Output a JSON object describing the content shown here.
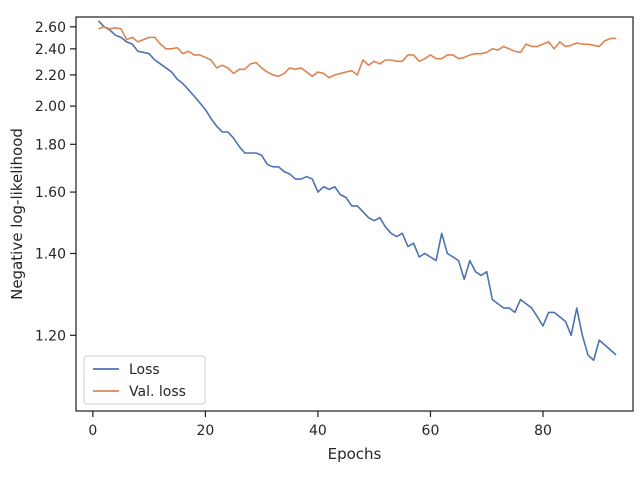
{
  "chart_data": {
    "type": "line",
    "title": "",
    "xlabel": "Epochs",
    "ylabel": "Negative log-likelihood",
    "xlim": [
      -3,
      96
    ],
    "ylim": [
      1.06,
      2.7
    ],
    "y_scale": "reciprocal (1/y)",
    "grid": false,
    "legend_position": "lower-left",
    "x_ticks": [
      0,
      20,
      40,
      60,
      80
    ],
    "x_tick_labels": [
      "0",
      "20",
      "40",
      "60",
      "80"
    ],
    "y_ticks": [
      1.2,
      1.4,
      1.6,
      1.8,
      2.0,
      2.2,
      2.4,
      2.6
    ],
    "y_tick_labels": [
      "1.20",
      "1.40",
      "1.60",
      "1.80",
      "2.00",
      "2.20",
      "2.40",
      "2.60"
    ],
    "series": [
      {
        "name": "Loss",
        "color": "#4c72b0",
        "x": [
          1,
          2,
          3,
          4,
          5,
          6,
          7,
          8,
          9,
          10,
          11,
          12,
          13,
          14,
          15,
          16,
          17,
          18,
          19,
          20,
          21,
          22,
          23,
          24,
          25,
          26,
          27,
          28,
          29,
          30,
          31,
          32,
          33,
          34,
          35,
          36,
          37,
          38,
          39,
          40,
          41,
          42,
          43,
          44,
          45,
          46,
          47,
          48,
          49,
          50,
          51,
          52,
          53,
          54,
          55,
          56,
          57,
          58,
          59,
          60,
          61,
          62,
          63,
          64,
          65,
          66,
          67,
          68,
          69,
          70,
          71,
          72,
          73,
          74,
          75,
          76,
          77,
          78,
          79,
          80,
          81,
          82,
          83,
          84,
          85,
          86,
          87,
          88,
          89,
          90,
          91,
          92,
          93
        ],
        "values": [
          2.66,
          2.6,
          2.57,
          2.52,
          2.5,
          2.46,
          2.44,
          2.38,
          2.37,
          2.36,
          2.31,
          2.28,
          2.25,
          2.22,
          2.17,
          2.14,
          2.1,
          2.06,
          2.02,
          1.98,
          1.93,
          1.89,
          1.86,
          1.86,
          1.83,
          1.79,
          1.76,
          1.76,
          1.76,
          1.75,
          1.71,
          1.7,
          1.7,
          1.68,
          1.67,
          1.65,
          1.65,
          1.66,
          1.65,
          1.6,
          1.62,
          1.61,
          1.62,
          1.59,
          1.58,
          1.55,
          1.55,
          1.53,
          1.51,
          1.5,
          1.51,
          1.48,
          1.46,
          1.45,
          1.46,
          1.42,
          1.43,
          1.39,
          1.4,
          1.39,
          1.38,
          1.46,
          1.4,
          1.39,
          1.38,
          1.33,
          1.38,
          1.35,
          1.34,
          1.35,
          1.28,
          1.27,
          1.26,
          1.26,
          1.25,
          1.28,
          1.27,
          1.26,
          1.24,
          1.22,
          1.25,
          1.25,
          1.24,
          1.23,
          1.2,
          1.26,
          1.2,
          1.16,
          1.15,
          1.19,
          1.18,
          1.17,
          1.16
        ]
      },
      {
        "name": "Val. loss",
        "color": "#dd8452",
        "x": [
          1,
          2,
          3,
          4,
          5,
          6,
          7,
          8,
          9,
          10,
          11,
          12,
          13,
          14,
          15,
          16,
          17,
          18,
          19,
          20,
          21,
          22,
          23,
          24,
          25,
          26,
          27,
          28,
          29,
          30,
          31,
          32,
          33,
          34,
          35,
          36,
          37,
          38,
          39,
          40,
          41,
          42,
          43,
          44,
          45,
          46,
          47,
          48,
          49,
          50,
          51,
          52,
          53,
          54,
          55,
          56,
          57,
          58,
          59,
          60,
          61,
          62,
          63,
          64,
          65,
          66,
          67,
          68,
          69,
          70,
          71,
          72,
          73,
          74,
          75,
          76,
          77,
          78,
          79,
          80,
          81,
          82,
          83,
          84,
          85,
          86,
          87,
          88,
          89,
          90,
          91,
          92,
          93
        ],
        "values": [
          2.58,
          2.6,
          2.58,
          2.59,
          2.58,
          2.48,
          2.5,
          2.46,
          2.48,
          2.5,
          2.5,
          2.44,
          2.4,
          2.4,
          2.41,
          2.36,
          2.38,
          2.35,
          2.35,
          2.33,
          2.31,
          2.25,
          2.27,
          2.25,
          2.21,
          2.24,
          2.24,
          2.28,
          2.29,
          2.25,
          2.22,
          2.2,
          2.19,
          2.21,
          2.25,
          2.24,
          2.25,
          2.22,
          2.19,
          2.22,
          2.21,
          2.18,
          2.2,
          2.21,
          2.22,
          2.23,
          2.2,
          2.31,
          2.27,
          2.3,
          2.28,
          2.31,
          2.31,
          2.3,
          2.3,
          2.35,
          2.35,
          2.3,
          2.32,
          2.35,
          2.32,
          2.32,
          2.35,
          2.35,
          2.32,
          2.33,
          2.35,
          2.36,
          2.36,
          2.37,
          2.4,
          2.39,
          2.42,
          2.4,
          2.38,
          2.37,
          2.44,
          2.42,
          2.42,
          2.44,
          2.46,
          2.4,
          2.46,
          2.42,
          2.43,
          2.45,
          2.44,
          2.44,
          2.43,
          2.42,
          2.47,
          2.49,
          2.49
        ]
      }
    ]
  }
}
